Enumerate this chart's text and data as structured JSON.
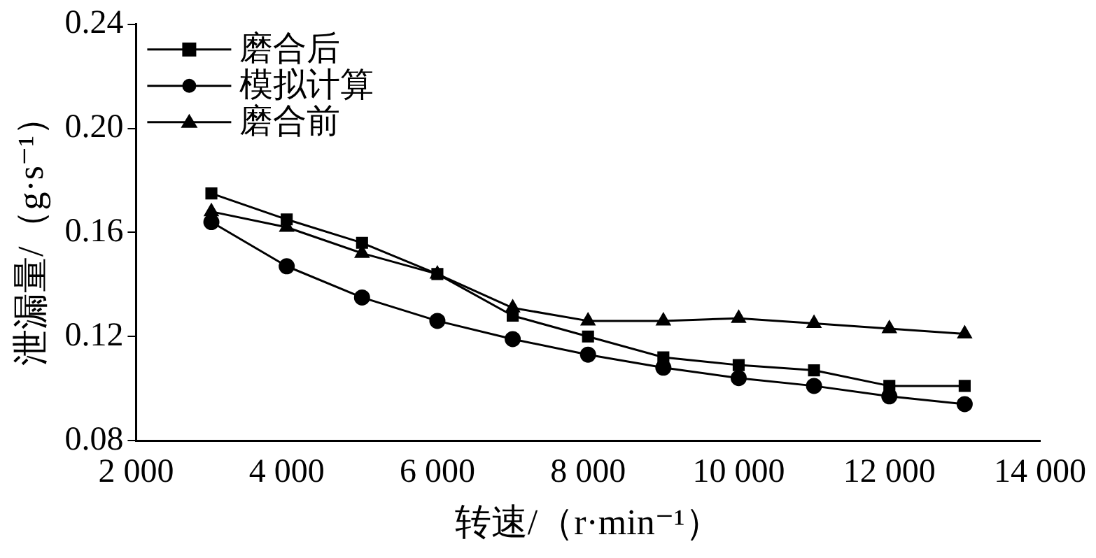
{
  "chart_data": {
    "type": "line",
    "xlabel": "转速/（r·min⁻¹）",
    "ylabel": "泄漏量/（g·s⁻¹）",
    "x": [
      3000,
      4000,
      5000,
      6000,
      7000,
      8000,
      9000,
      10000,
      11000,
      12000,
      13000
    ],
    "series": [
      {
        "name": "磨合后",
        "color": "#000000",
        "marker": "square",
        "values": [
          0.175,
          0.165,
          0.156,
          0.144,
          0.128,
          0.12,
          0.112,
          0.109,
          0.107,
          0.101,
          0.101
        ]
      },
      {
        "name": "模拟计算",
        "color": "#000000",
        "marker": "circle",
        "values": [
          0.164,
          0.147,
          0.135,
          0.126,
          0.119,
          0.113,
          0.108,
          0.104,
          0.101,
          0.097,
          0.094
        ]
      },
      {
        "name": "磨合前",
        "color": "#000000",
        "marker": "triangle",
        "values": [
          0.168,
          0.162,
          0.152,
          0.144,
          0.131,
          0.126,
          0.126,
          0.127,
          0.125,
          0.123,
          0.121
        ]
      }
    ],
    "xlim": [
      2000,
      14000
    ],
    "xticks": [
      {
        "value": 2000,
        "label": "2 000"
      },
      {
        "value": 4000,
        "label": "4 000"
      },
      {
        "value": 6000,
        "label": "6 000"
      },
      {
        "value": 8000,
        "label": "8 000"
      },
      {
        "value": 10000,
        "label": "10 000"
      },
      {
        "value": 12000,
        "label": "12 000"
      },
      {
        "value": 14000,
        "label": "14 000"
      }
    ],
    "ylim": [
      0.08,
      0.24
    ],
    "yticks": [
      {
        "value": 0.08,
        "label": "0.08"
      },
      {
        "value": 0.12,
        "label": "0.12"
      },
      {
        "value": 0.16,
        "label": "0.16"
      },
      {
        "value": 0.2,
        "label": "0.20"
      },
      {
        "value": 0.24,
        "label": "0.24"
      }
    ],
    "grid": false,
    "legend": "top left",
    "line_style": "solid"
  }
}
